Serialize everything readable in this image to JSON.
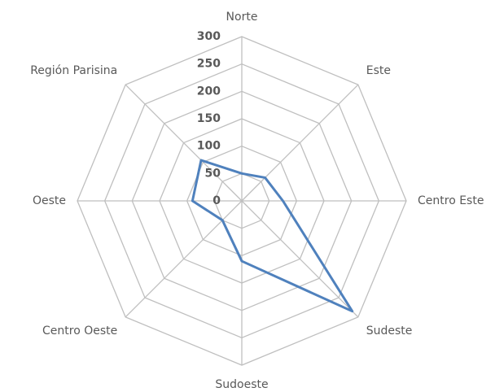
{
  "chart_data": {
    "type": "radar",
    "categories": [
      "Norte",
      "Este",
      "Centro Este",
      "Sudeste",
      "Sudoeste",
      "Centro Oeste",
      "Oeste",
      "Región Parisina"
    ],
    "values": [
      50,
      60,
      75,
      285,
      110,
      50,
      90,
      105
    ],
    "color": "#4f81bd",
    "ylim": [
      0,
      300
    ],
    "yticks": [
      0,
      50,
      100,
      150,
      200,
      250,
      300
    ],
    "grid": true
  }
}
